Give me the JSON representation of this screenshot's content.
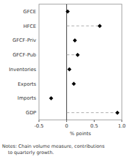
{
  "chart_data": {
    "type": "dot",
    "orientation": "horizontal",
    "categories": [
      "GFCE",
      "HFCE",
      "GFCF-Priv",
      "GFCF-Pub",
      "Inventories",
      "Exports",
      "Imports",
      "GDP"
    ],
    "series": [
      {
        "type": "scatter",
        "marker": "diamond",
        "color": "#000000",
        "values": [
          0.02,
          0.6,
          0.15,
          0.2,
          0.05,
          0.13,
          -0.28,
          0.92
        ]
      },
      {
        "type": "stem",
        "line_style": "dashed",
        "color": "#aaaaaa",
        "values": [
          null,
          0.6,
          null,
          0.2,
          null,
          null,
          null,
          0.92
        ]
      }
    ],
    "xlabel": "% points",
    "xlim": [
      -0.5,
      1.0
    ],
    "xticks": [
      -0.5,
      0,
      0.5,
      {
        "value": 1.0,
        "label": "1.0"
      }
    ],
    "grid": false,
    "annotations": [
      "Notes: Chain volume measure, contributions",
      "    to quarterly growth."
    ]
  }
}
